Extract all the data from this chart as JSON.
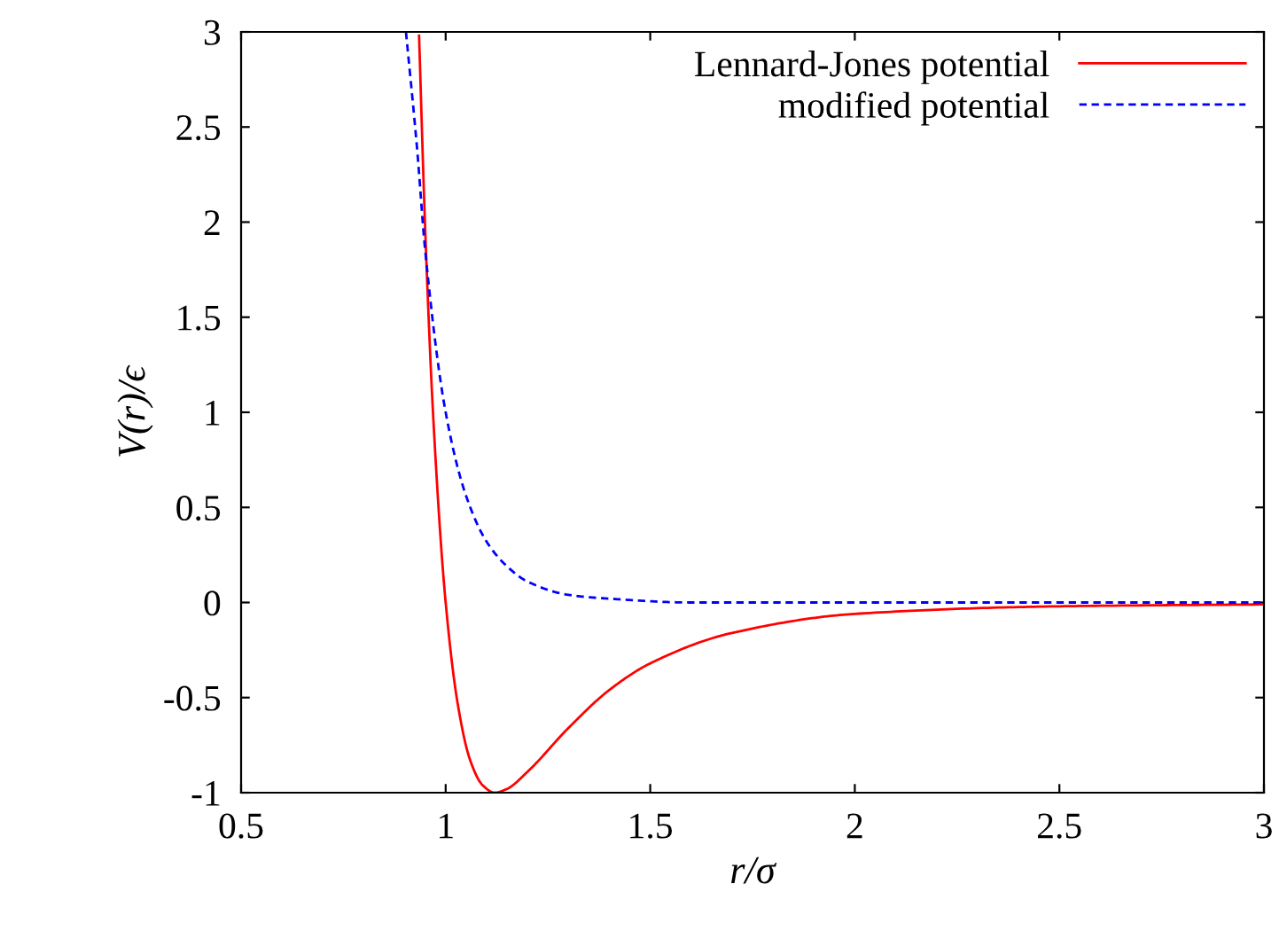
{
  "chart_data": {
    "type": "line",
    "xlabel": "r/σ",
    "ylabel": "V(r)/ϵ",
    "xlim": [
      0.5,
      3
    ],
    "ylim": [
      -1,
      3
    ],
    "xticks": [
      0.5,
      1,
      1.5,
      2,
      2.5,
      3
    ],
    "yticks": [
      {
        "value": -1,
        "label": "-1"
      },
      {
        "value": -0.5,
        "label": "-0.5"
      },
      0,
      0.5,
      1,
      1.5,
      2,
      2.5,
      3
    ],
    "legend": "top right",
    "grid": false,
    "marker": "none",
    "series": [
      {
        "name": "Lennard-Jones potential",
        "color": "#ff0000",
        "line_style": "solid",
        "x": [
          0.935,
          0.95,
          0.97,
          1.0,
          1.03,
          1.06,
          1.09,
          1.12,
          1.15,
          1.2,
          1.3,
          1.4,
          1.5,
          1.7,
          2.0,
          2.5,
          3.0
        ],
        "values": [
          2.98,
          1.96,
          0.96,
          0,
          -0.54,
          -0.83,
          -0.96,
          -1.0,
          -0.98,
          -0.89,
          -0.66,
          -0.46,
          -0.32,
          -0.16,
          -0.06,
          -0.02,
          -0.01
        ]
      },
      {
        "name": "modified potential",
        "color": "#0000ff",
        "line_style": "dashed",
        "x": [
          0.903,
          0.93,
          0.95,
          1.0,
          1.05,
          1.1,
          1.15,
          1.2,
          1.3,
          1.4,
          1.6,
          2.0,
          3.0
        ],
        "values": [
          3.0,
          2.39,
          1.85,
          1.0,
          0.56,
          0.32,
          0.19,
          0.11,
          0.04,
          0.02,
          0.0,
          0.0,
          0.0
        ]
      }
    ]
  }
}
